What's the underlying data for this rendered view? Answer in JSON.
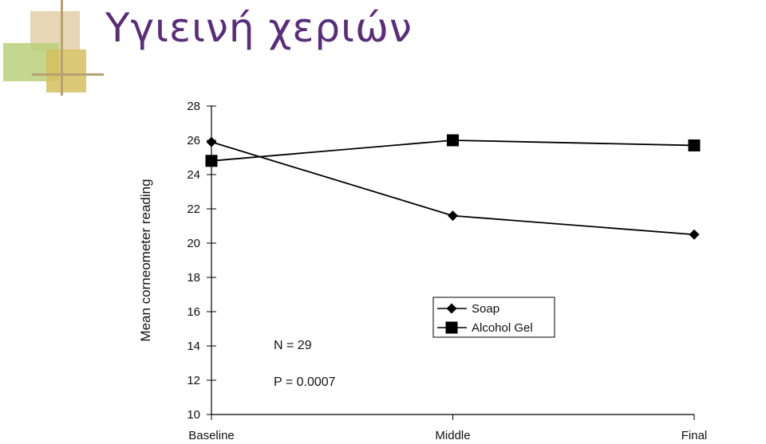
{
  "slide": {
    "title": "Υγιεινή χεριών"
  },
  "chart_data": {
    "type": "line",
    "title": "",
    "xlabel": "",
    "ylabel": "Mean corneometer reading",
    "categories": [
      "Baseline",
      "Middle",
      "Final"
    ],
    "ylim": [
      10,
      28
    ],
    "yticks": [
      10,
      12,
      14,
      16,
      18,
      20,
      22,
      24,
      26,
      28
    ],
    "series": [
      {
        "name": "Soap",
        "marker": "diamond",
        "values": [
          25.9,
          21.6,
          20.5
        ]
      },
      {
        "name": "Alcohol Gel",
        "marker": "square",
        "values": [
          24.8,
          26.0,
          25.7
        ]
      }
    ],
    "legend_position": "center-right",
    "annotations": [
      "N = 29",
      "P = 0.0007"
    ],
    "grid": false
  },
  "colors": {
    "title": "#5a2d7a",
    "line": "#000000",
    "deco_tan": "#d9b98a",
    "deco_green": "#a8c46a",
    "deco_olive": "#c8b44a"
  }
}
